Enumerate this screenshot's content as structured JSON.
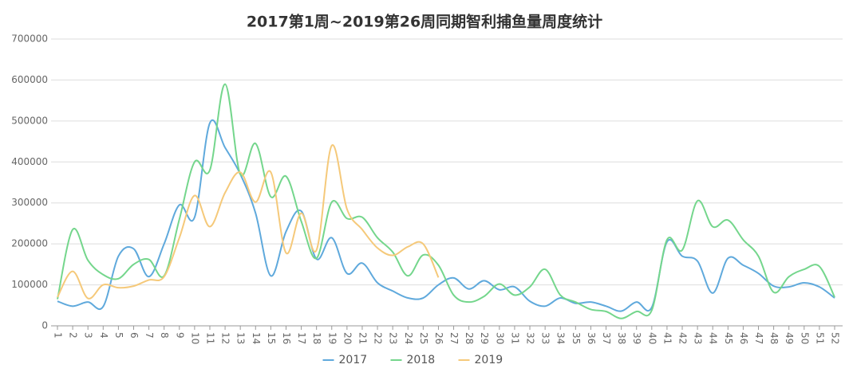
{
  "chart_data": {
    "type": "line",
    "title": "2017第1周~2019第26周同期智利捕鱼量周度统计",
    "categories": [
      "1",
      "2",
      "3",
      "4",
      "5",
      "6",
      "7",
      "8",
      "9",
      "10",
      "11",
      "12",
      "13",
      "14",
      "15",
      "16",
      "17",
      "18",
      "19",
      "20",
      "21",
      "22",
      "23",
      "24",
      "25",
      "26",
      "27",
      "28",
      "29",
      "30",
      "31",
      "32",
      "33",
      "34",
      "35",
      "36",
      "37",
      "38",
      "39",
      "40",
      "41",
      "42",
      "43",
      "44",
      "45",
      "46",
      "47",
      "48",
      "49",
      "50",
      "51",
      "52"
    ],
    "series": [
      {
        "name": "2017",
        "color": "#5fa9dc",
        "values": [
          60000,
          48000,
          58000,
          47000,
          170000,
          188000,
          120000,
          200000,
          295000,
          265000,
          495000,
          435000,
          370000,
          275000,
          122000,
          230000,
          280000,
          163000,
          215000,
          128000,
          153000,
          105000,
          85000,
          68000,
          68000,
          100000,
          117000,
          90000,
          110000,
          88000,
          95000,
          60000,
          48000,
          68000,
          55000,
          58000,
          48000,
          36000,
          58000,
          45000,
          205000,
          170000,
          158000,
          80000,
          165000,
          148000,
          128000,
          97000,
          95000,
          105000,
          95000,
          68000
        ]
      },
      {
        "name": "2018",
        "color": "#74d68c",
        "values": [
          65000,
          235000,
          160000,
          125000,
          115000,
          150000,
          162000,
          122000,
          260000,
          400000,
          380000,
          590000,
          370000,
          445000,
          315000,
          365000,
          255000,
          165000,
          302000,
          262000,
          265000,
          215000,
          180000,
          122000,
          173000,
          148000,
          75000,
          58000,
          72000,
          102000,
          75000,
          95000,
          138000,
          75000,
          58000,
          40000,
          35000,
          18000,
          35000,
          38000,
          210000,
          185000,
          305000,
          242000,
          258000,
          210000,
          170000,
          82000,
          120000,
          138000,
          145000,
          70000
        ]
      },
      {
        "name": "2019",
        "color": "#f5c97a",
        "values": [
          70000,
          133000,
          67000,
          100000,
          93000,
          97000,
          112000,
          120000,
          215000,
          318000,
          242000,
          325000,
          375000,
          302000,
          375000,
          178000,
          275000,
          185000,
          440000,
          285000,
          235000,
          190000,
          172000,
          193000,
          200000,
          118000,
          null,
          null,
          null,
          null,
          null,
          null,
          null,
          null,
          null,
          null,
          null,
          null,
          null,
          null,
          null,
          null,
          null,
          null,
          null,
          null,
          null,
          null,
          null,
          null,
          null,
          null
        ]
      }
    ],
    "ylim": [
      0,
      700000
    ],
    "yticks": [
      0,
      100000,
      200000,
      300000,
      400000,
      500000,
      600000,
      700000
    ],
    "grid": true,
    "legend": "bottom"
  }
}
